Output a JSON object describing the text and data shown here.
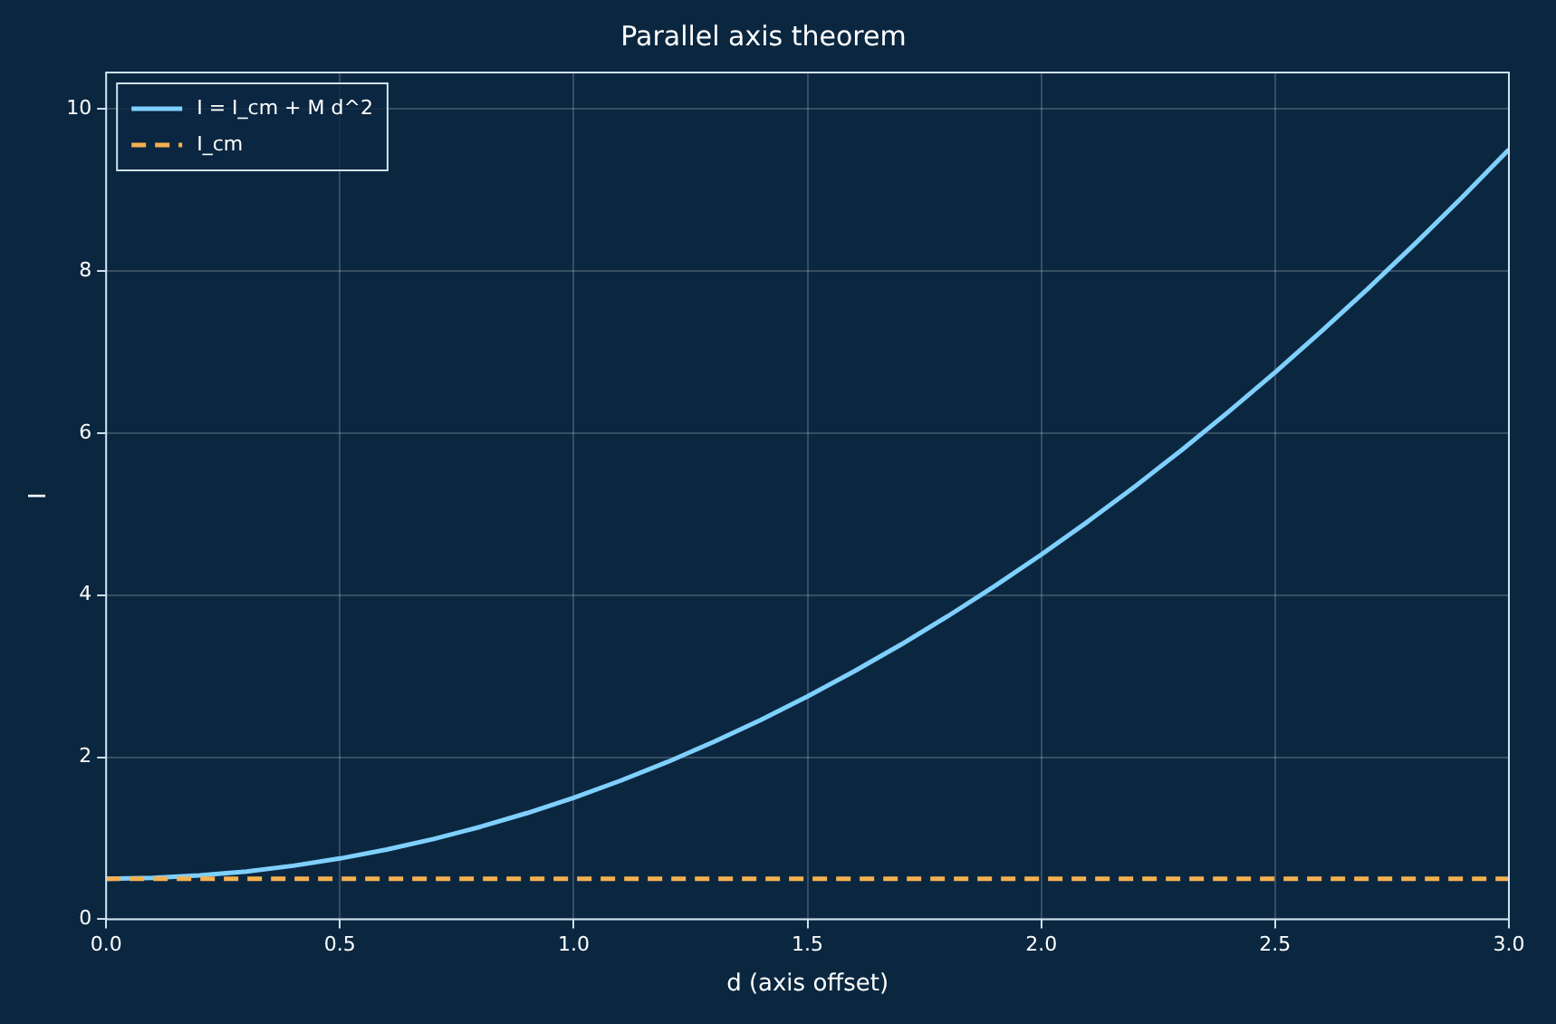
{
  "chart_data": {
    "type": "line",
    "title": "Parallel axis theorem",
    "xlabel": "d (axis offset)",
    "ylabel": "I",
    "x": [
      0,
      0.1,
      0.2,
      0.3,
      0.4,
      0.5,
      0.6,
      0.7,
      0.8,
      0.9,
      1,
      1.1,
      1.2,
      1.3,
      1.4,
      1.5,
      1.6,
      1.7,
      1.8,
      1.9,
      2,
      2.1,
      2.2,
      2.3,
      2.4,
      2.5,
      2.6,
      2.7,
      2.8,
      2.9,
      3
    ],
    "series": [
      {
        "name": "I = I_cm + M d^2",
        "color": "#7fd0ff",
        "line_style": "solid",
        "values": [
          0.5,
          0.51,
          0.54,
          0.59,
          0.66,
          0.75,
          0.86,
          0.99,
          1.14,
          1.31,
          1.5,
          1.71,
          1.94,
          2.19,
          2.46,
          2.75,
          3.06,
          3.39,
          3.74,
          4.11,
          4.5,
          4.91,
          5.34,
          5.79,
          6.26,
          6.75,
          7.26,
          7.79,
          8.34,
          8.91,
          9.5
        ]
      },
      {
        "name": "I_cm",
        "color": "#f5b04f",
        "line_style": "dashed",
        "values": [
          0.5,
          0.5,
          0.5,
          0.5,
          0.5,
          0.5,
          0.5,
          0.5,
          0.5,
          0.5,
          0.5,
          0.5,
          0.5,
          0.5,
          0.5,
          0.5,
          0.5,
          0.5,
          0.5,
          0.5,
          0.5,
          0.5,
          0.5,
          0.5,
          0.5,
          0.5,
          0.5,
          0.5,
          0.5,
          0.5,
          0.5
        ]
      }
    ],
    "xlim": [
      0,
      3
    ],
    "ylim": [
      0,
      10.45
    ],
    "xticks": [
      {
        "value": 0,
        "label": "0.0"
      },
      {
        "value": 0.5,
        "label": "0.5"
      },
      {
        "value": 1,
        "label": "1.0"
      },
      {
        "value": 1.5,
        "label": "1.5"
      },
      {
        "value": 2,
        "label": "2.0"
      },
      {
        "value": 2.5,
        "label": "2.5"
      },
      {
        "value": 3,
        "label": "3.0"
      }
    ],
    "yticks": [
      0,
      2,
      4,
      6,
      8,
      10
    ],
    "grid": true,
    "legend": "top left",
    "marker": "none"
  }
}
